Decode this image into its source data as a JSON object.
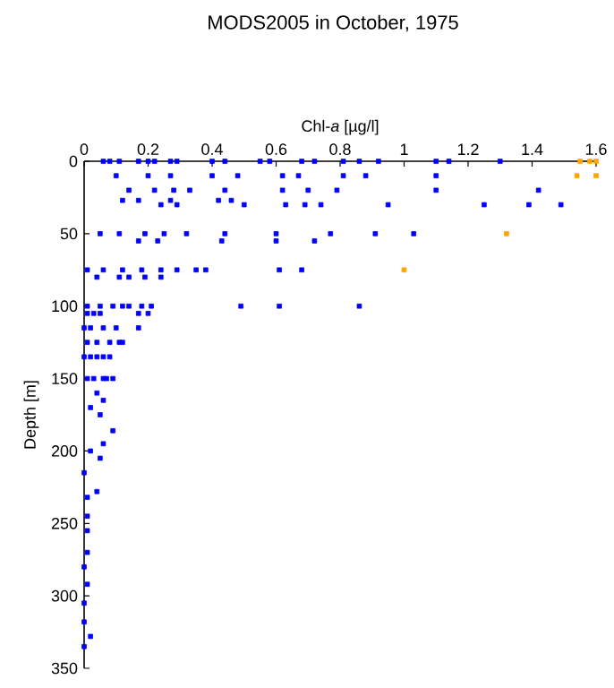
{
  "chart_data": {
    "type": "scatter",
    "title": "MODS2005 in October, 1975",
    "xlabel": "Chl-*a* [µg/l]",
    "ylabel": "Depth [m]",
    "xlim": [
      0,
      1.6
    ],
    "ylim": [
      350,
      0
    ],
    "xticks": [
      0,
      0.2,
      0.4,
      0.6,
      0.8,
      1,
      1.2,
      1.4,
      1.6
    ],
    "yticks": [
      0,
      50,
      100,
      150,
      200,
      250,
      300,
      350
    ],
    "marker": "square",
    "series": [
      {
        "color": "#0000ff",
        "x": [
          0.06,
          0.11,
          0.2,
          0.27,
          0.4,
          0.55,
          0.68,
          0.81,
          0.92,
          1.14,
          0.08,
          0.17,
          0.22,
          0.29,
          0.44,
          0.58,
          0.72,
          0.86,
          1.1,
          1.3,
          0.1,
          0.2,
          0.27,
          0.4,
          0.48,
          0.62,
          0.67,
          0.81,
          0.88,
          1.1,
          0.14,
          0.22,
          0.28,
          0.33,
          0.44,
          0.62,
          0.7,
          0.79,
          1.1,
          1.42,
          0.12,
          0.17,
          0.27,
          0.42,
          0.46,
          0.24,
          0.29,
          0.5,
          0.63,
          0.69,
          0.74,
          0.95,
          1.25,
          1.39,
          1.49,
          0.05,
          0.11,
          0.19,
          0.25,
          0.32,
          0.44,
          0.6,
          0.77,
          0.91,
          1.03,
          0.23,
          0.43,
          0.6,
          0.72,
          0.17,
          0.01,
          0.06,
          0.12,
          0.18,
          0.24,
          0.29,
          0.35,
          0.38,
          0.61,
          0.68,
          0.04,
          0.11,
          0.14,
          0.19,
          0.24,
          0.01,
          0.05,
          0.09,
          0.12,
          0.14,
          0.18,
          0.21,
          0.49,
          0.61,
          0.86,
          0.01,
          0.03,
          0.05,
          0.17,
          0.2,
          0.0,
          0.06,
          0.1,
          0.17,
          0.02,
          0.01,
          0.04,
          0.08,
          0.11,
          0.12,
          0.0,
          0.02,
          0.04,
          0.06,
          0.08,
          0.01,
          0.03,
          0.06,
          0.09,
          0.07,
          0.04,
          0.06,
          0.02,
          0.05,
          0.09,
          0.06,
          0.02,
          0.05,
          0.0,
          0.04,
          0.01,
          0.01,
          0.01,
          0.01,
          0.0,
          0.01,
          0.0,
          0.0,
          0.02,
          0.0
        ],
        "values": [
          0,
          0,
          0,
          0,
          0,
          0,
          0,
          0,
          0,
          0,
          0,
          0,
          0,
          0,
          0,
          0,
          0,
          0,
          0,
          0,
          10,
          10,
          10,
          10,
          10,
          10,
          10,
          10,
          10,
          10,
          20,
          20,
          20,
          20,
          20,
          20,
          20,
          20,
          20,
          20,
          27,
          27,
          27,
          27,
          27,
          30,
          30,
          30,
          30,
          30,
          30,
          30,
          30,
          30,
          30,
          50,
          50,
          50,
          50,
          50,
          50,
          50,
          50,
          50,
          50,
          55,
          55,
          55,
          55,
          55,
          75,
          75,
          75,
          75,
          75,
          75,
          75,
          75,
          75,
          75,
          80,
          80,
          80,
          80,
          80,
          100,
          100,
          100,
          100,
          100,
          100,
          100,
          100,
          100,
          100,
          105,
          105,
          105,
          105,
          105,
          115,
          115,
          115,
          115,
          115,
          125,
          125,
          125,
          125,
          125,
          135,
          135,
          135,
          135,
          135,
          150,
          150,
          150,
          150,
          150,
          160,
          165,
          170,
          175,
          186,
          195,
          200,
          205,
          215,
          228,
          232,
          245,
          255,
          270,
          280,
          292,
          305,
          318,
          328,
          335
        ]
      },
      {
        "color": "#ffa500",
        "x": [
          1.55,
          1.58,
          1.6,
          1.54,
          1.6,
          1.32,
          1.0
        ],
        "values": [
          0,
          0,
          0,
          10,
          10,
          50,
          75
        ]
      }
    ]
  }
}
